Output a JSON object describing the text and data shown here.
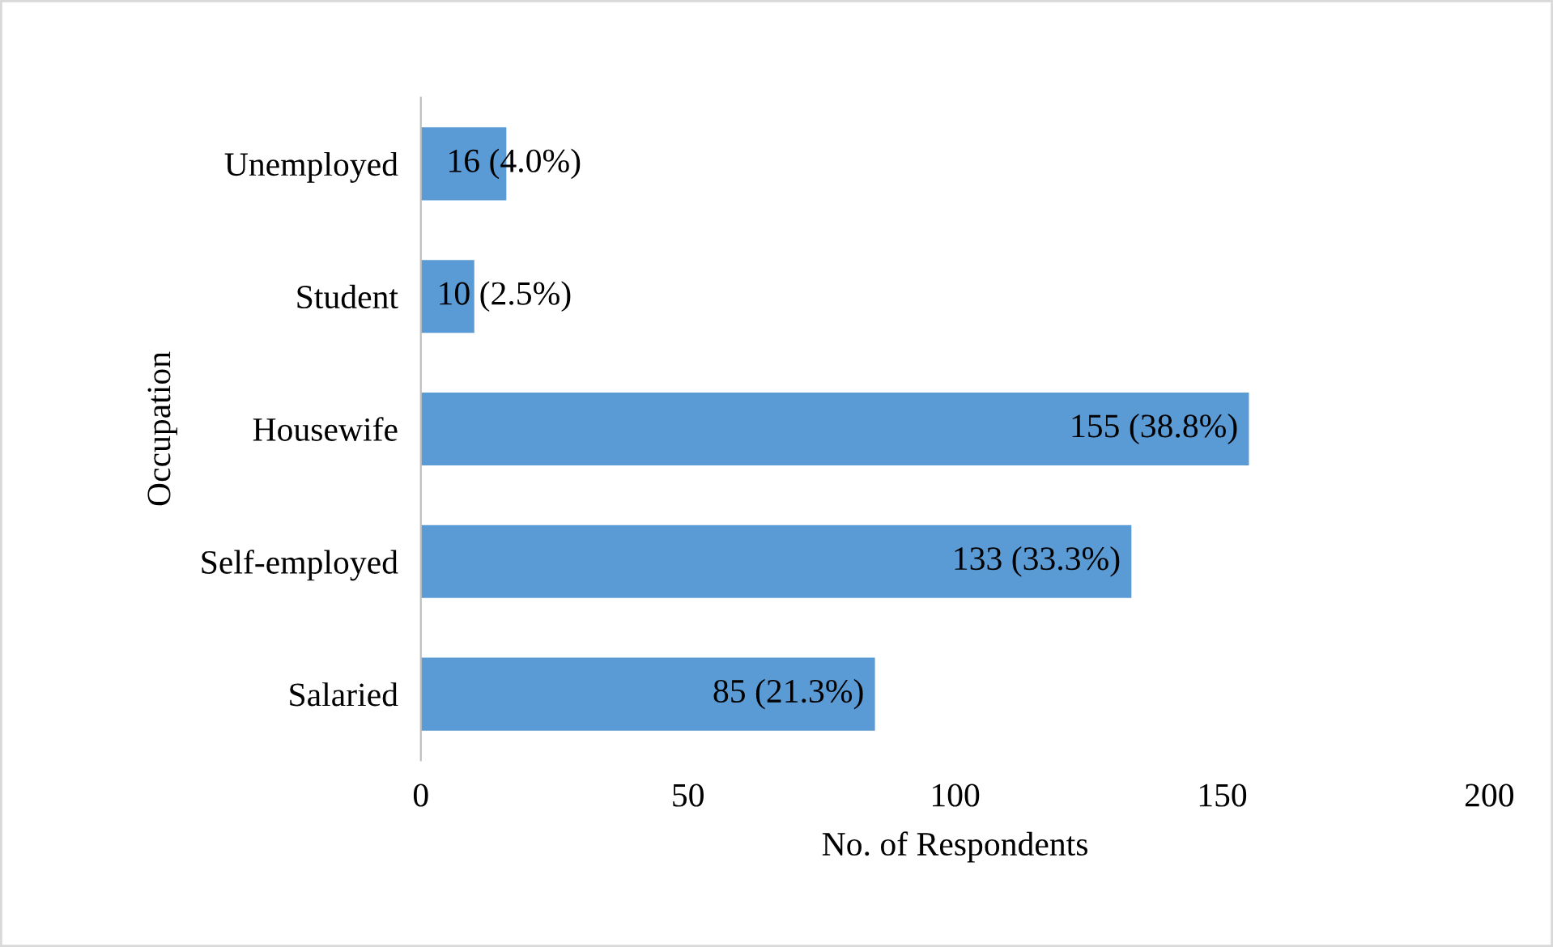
{
  "chart_data": {
    "type": "bar",
    "orientation": "horizontal",
    "xlabel": "No. of Respondents",
    "ylabel": "Occupation",
    "categories": [
      "Unemployed",
      "Student",
      "Housewife",
      "Self-employed",
      "Salaried"
    ],
    "values": [
      16,
      10,
      155,
      133,
      85
    ],
    "value_labels": [
      "16 (4.0%)",
      "10 (2.5%)",
      "155 (38.8%)",
      "133 (33.3%)",
      "85 (21.3%)"
    ],
    "color": "#5b9bd5",
    "xlim": [
      0,
      200
    ],
    "xticks": [
      0,
      50,
      100,
      150,
      200
    ]
  }
}
